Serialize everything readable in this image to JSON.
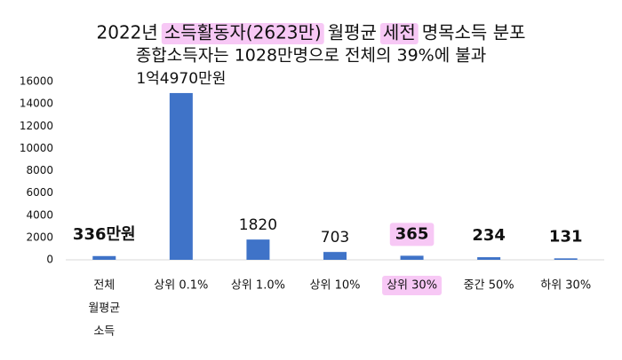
{
  "chart_data": {
    "type": "bar",
    "title": [
      "2022년",
      "소득활동자(2623만)",
      "월평균",
      "세전",
      "명목소득 분포"
    ],
    "title_highlight": [
      1,
      3
    ],
    "subtitle": "종합소득자는 1028만명으로 전체의 39%에 불과",
    "categories": [
      [
        "전체",
        "월평균",
        "소득"
      ],
      [
        "상위 0.1%"
      ],
      [
        "상위 1.0%"
      ],
      [
        "상위 10%"
      ],
      [
        "상위 30%"
      ],
      [
        "중간 50%"
      ],
      [
        "하위 30%"
      ]
    ],
    "values": [
      336,
      14970,
      1820,
      703,
      365,
      234,
      131
    ],
    "value_labels": [
      "336만원",
      "1억4970만원",
      "1820",
      "703",
      "365",
      "234",
      "131"
    ],
    "value_label_colors": [
      "#17b0d6",
      "#111111",
      "#111111",
      "#111111",
      "#c8143f",
      "#16a04a",
      "#c8143f"
    ],
    "highlight_index": 4,
    "color": "#3f73c8",
    "ylim": [
      0,
      16000
    ],
    "yticks": [
      0,
      2000,
      4000,
      6000,
      8000,
      10000,
      12000,
      14000,
      16000
    ],
    "grid": false
  }
}
